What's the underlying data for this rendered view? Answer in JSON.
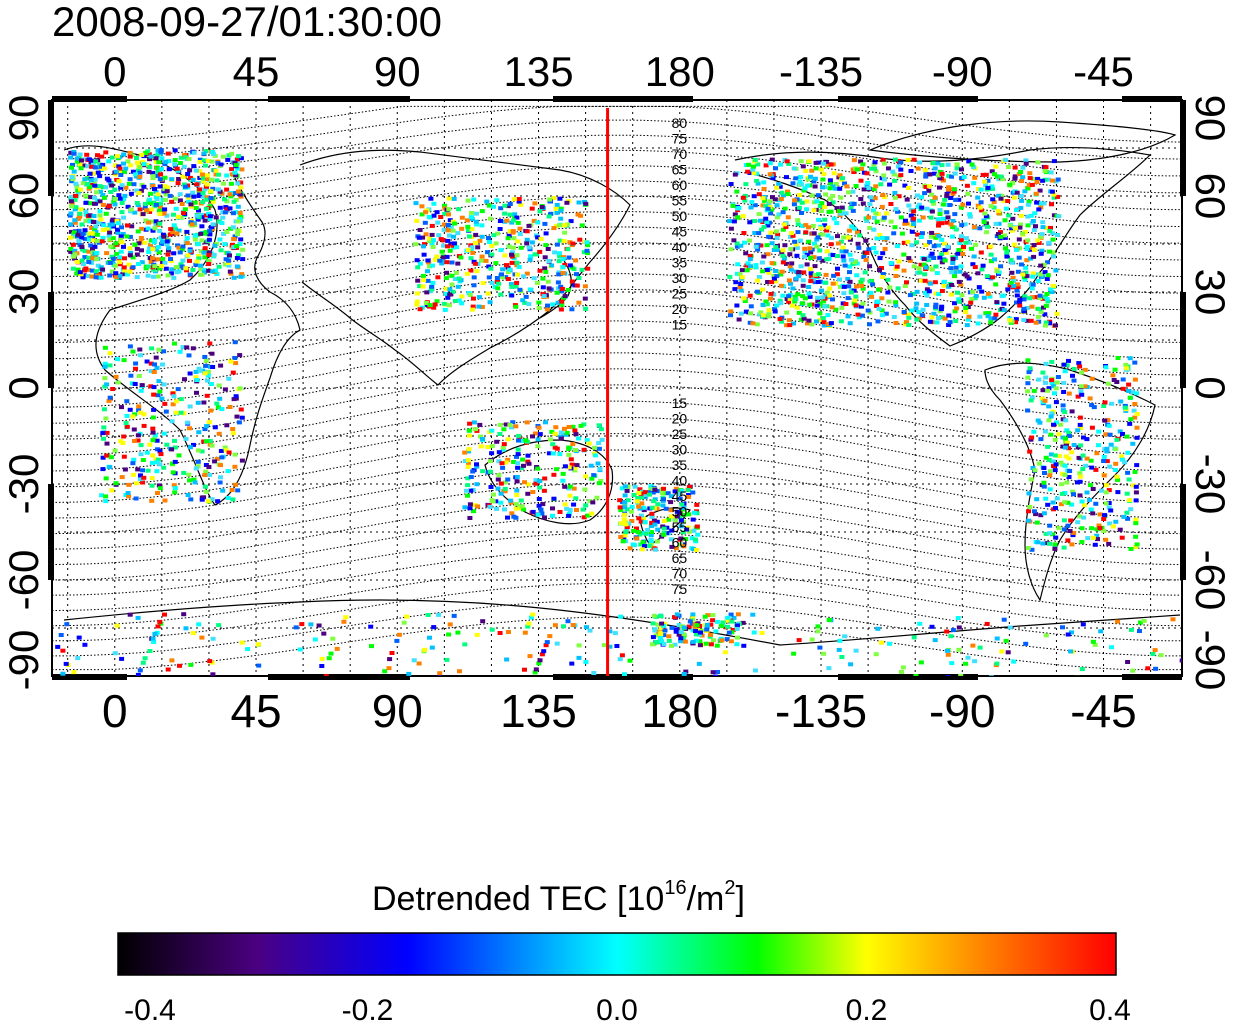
{
  "title": "2008-09-27/01:30:00",
  "map": {
    "top_lon_ticks": [
      "0",
      "45",
      "90",
      "135",
      "180",
      "-135",
      "-90",
      "-45"
    ],
    "bottom_lon_ticks": [
      "0",
      "45",
      "90",
      "135",
      "180",
      "-135",
      "-90",
      "-45"
    ],
    "left_lat_ticks": [
      "90",
      "60",
      "30",
      "0",
      "-30",
      "-60",
      "-90"
    ],
    "right_lat_ticks": [
      "90",
      "60",
      "30",
      "0",
      "-30",
      "-60",
      "-90"
    ],
    "lon_tick_values": [
      0,
      45,
      90,
      135,
      180,
      -135,
      -90,
      -45
    ],
    "lat_tick_values": [
      90,
      60,
      30,
      0,
      -30,
      -60,
      -90
    ],
    "lon_range": [
      -20,
      340
    ],
    "lat_range": [
      -90,
      90
    ],
    "red_meridian_lon": 157,
    "magnetic_lat_labels_north": [
      "80",
      "75",
      "70",
      "65",
      "60",
      "55",
      "50",
      "45",
      "40",
      "35",
      "30",
      "25",
      "20",
      "15"
    ],
    "magnetic_lat_labels_south": [
      "15",
      "20",
      "25",
      "30",
      "35",
      "40",
      "45",
      "50",
      "55",
      "60",
      "65",
      "70",
      "75"
    ],
    "colors": {
      "red_line": "#ff0000",
      "coastline": "#000000"
    }
  },
  "colorbar": {
    "title_main": "Detrended TEC  [10",
    "title_sup": "16",
    "title_mid": "/m",
    "title_sup2": "2",
    "title_end": "]",
    "ticks": [
      "-0.4",
      "-0.2",
      "0.0",
      "0.2",
      "0.4"
    ],
    "range": [
      -0.4,
      0.4
    ],
    "stops": [
      "#000000",
      "#4b0082",
      "#0000ff",
      "#00ffff",
      "#00ff00",
      "#ffff00",
      "#ff8000",
      "#ff0000"
    ]
  }
}
